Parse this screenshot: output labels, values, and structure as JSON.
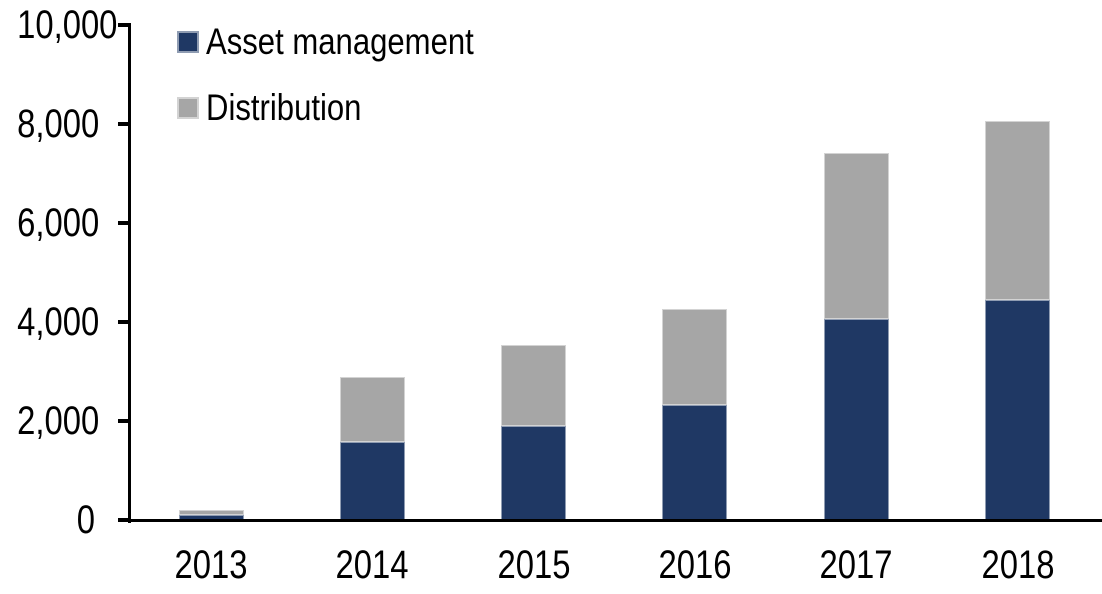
{
  "chart_data": {
    "type": "bar",
    "stacked": true,
    "title": "",
    "xlabel": "",
    "ylabel": "",
    "categories": [
      "2013",
      "2014",
      "2015",
      "2016",
      "2017",
      "2018"
    ],
    "series": [
      {
        "name": "Asset management",
        "color": "#1f3864",
        "values": [
          100,
          1570,
          1900,
          2320,
          4070,
          4440
        ]
      },
      {
        "name": "Distribution",
        "color": "#a6a6a6",
        "values": [
          100,
          1310,
          1630,
          1950,
          3350,
          3620
        ]
      }
    ],
    "totals": [
      200,
      2880,
      3530,
      4270,
      7420,
      8060
    ],
    "ylim": [
      0,
      10000
    ],
    "ytick_step": 2000,
    "ytick_labels": [
      "0",
      "2,000",
      "4,000",
      "6,000",
      "8,000",
      "10,000"
    ],
    "grid": false,
    "legend_position": "top-left",
    "axis_color": "#000000",
    "background_color": "#ffffff"
  }
}
